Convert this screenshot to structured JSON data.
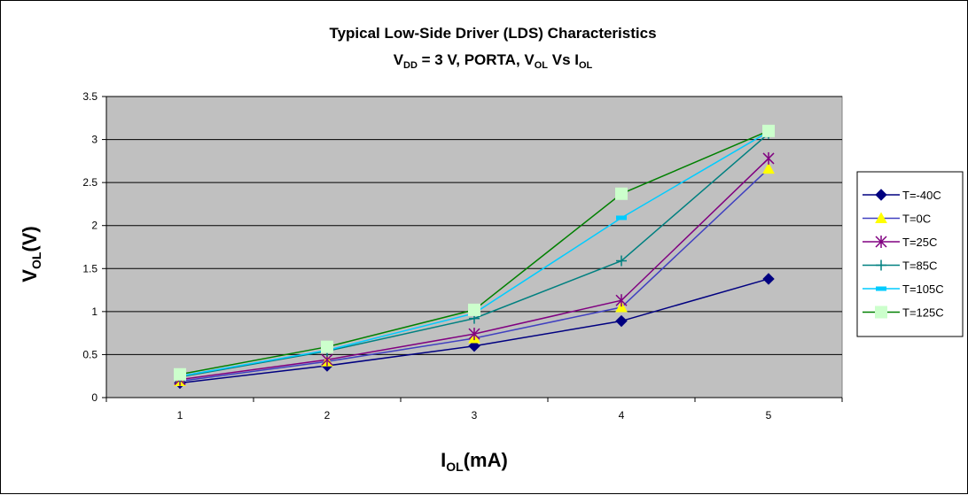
{
  "chart_data": {
    "type": "line",
    "title_line1": "Typical Low-Side Driver (LDS) Characteristics",
    "title_line2": {
      "p1": "V",
      "p1_sub": "DD",
      "p2": " = 3 V, PORTA, V",
      "p2_sub": "OL",
      "p3": " Vs I",
      "p3_sub": "OL"
    },
    "xlabel": {
      "main": "I",
      "sub": "OL",
      "rest": "(mA)"
    },
    "ylabel": {
      "main": "V",
      "sub": "OL",
      "rest": "(V)"
    },
    "x": [
      1,
      2,
      3,
      4,
      5
    ],
    "x_tick_labels": [
      "1",
      "2",
      "3",
      "4",
      "5"
    ],
    "ylim": [
      0,
      3.5
    ],
    "y_ticks": [
      0,
      0.5,
      1,
      1.5,
      2,
      2.5,
      3,
      3.5
    ],
    "y_tick_labels": [
      "0",
      "0.5",
      "1",
      "1.5",
      "2",
      "2.5",
      "3",
      "3.5"
    ],
    "grid": true,
    "plot_background": "#c0c0c0",
    "legend_position": "right",
    "series": [
      {
        "name": "T=-40C",
        "color": "#000080",
        "marker": "diamond",
        "values": [
          0.17,
          0.37,
          0.6,
          0.89,
          1.38
        ]
      },
      {
        "name": "T=0C",
        "color": "#4040c0",
        "marker": "triangle",
        "marker_color": "#ffff00",
        "values": [
          0.19,
          0.42,
          0.69,
          1.05,
          2.66
        ]
      },
      {
        "name": "T=25C",
        "color": "#800080",
        "marker": "star",
        "values": [
          0.21,
          0.44,
          0.74,
          1.13,
          2.78
        ]
      },
      {
        "name": "T=85C",
        "color": "#008080",
        "marker": "plus",
        "values": [
          0.24,
          0.54,
          0.92,
          1.59,
          3.07
        ]
      },
      {
        "name": "T=105C",
        "color": "#00ccff",
        "marker": "dash",
        "values": [
          0.25,
          0.55,
          0.98,
          2.09,
          3.09
        ]
      },
      {
        "name": "T=125C",
        "color": "#008000",
        "marker": "square",
        "marker_color": "#ccffcc",
        "values": [
          0.27,
          0.59,
          1.02,
          2.37,
          3.1
        ]
      }
    ]
  }
}
